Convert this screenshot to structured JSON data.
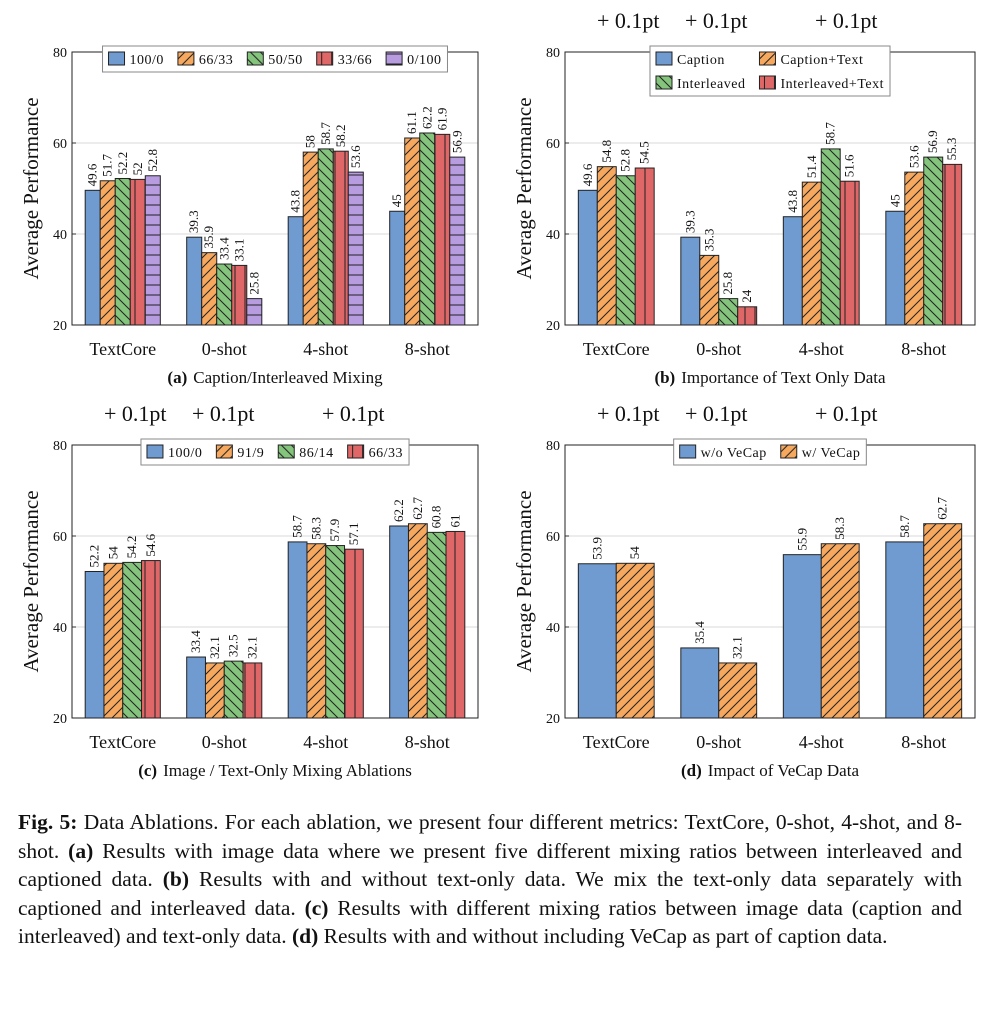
{
  "chart_data": [
    {
      "type": "bar",
      "label": "(a)",
      "title": "Caption/Interleaved Mixing",
      "y_label": "Average Performance",
      "categories": [
        "TextCore",
        "0-shot",
        "4-shot",
        "8-shot"
      ],
      "series": [
        {
          "name": "100/0",
          "color": "#6f9bd1",
          "hatch": "none",
          "values": [
            49.6,
            39.3,
            43.8,
            45
          ]
        },
        {
          "name": "66/33",
          "color": "#f6a85e",
          "hatch": "/",
          "values": [
            51.7,
            35.9,
            58,
            61.1
          ]
        },
        {
          "name": "50/50",
          "color": "#84c47c",
          "hatch": "\\",
          "values": [
            52.2,
            33.4,
            58.7,
            62.2
          ]
        },
        {
          "name": "33/66",
          "color": "#e06767",
          "hatch": "|",
          "values": [
            52,
            33.1,
            58.2,
            61.9
          ]
        },
        {
          "name": "0/100",
          "color": "#b79ce0",
          "hatch": "-",
          "values": [
            52.8,
            25.8,
            53.6,
            56.9
          ]
        }
      ],
      "ylim": [
        20,
        80
      ],
      "yticks": [
        20,
        40,
        60,
        80
      ],
      "grid": true,
      "legend": "upper center",
      "legend_columns": 5
    },
    {
      "type": "bar",
      "label": "(b)",
      "title": "Importance of Text Only Data",
      "y_label": "Average Performance",
      "annotations": [
        "+ 0.1pt",
        "+ 0.1pt",
        "+ 0.1pt"
      ],
      "categories": [
        "TextCore",
        "0-shot",
        "4-shot",
        "8-shot"
      ],
      "series": [
        {
          "name": "Caption",
          "color": "#6f9bd1",
          "hatch": "none",
          "values": [
            49.6,
            39.3,
            43.8,
            45
          ]
        },
        {
          "name": "Caption+Text",
          "color": "#f6a85e",
          "hatch": "/",
          "values": [
            54.8,
            35.3,
            51.4,
            53.6
          ]
        },
        {
          "name": "Interleaved",
          "color": "#84c47c",
          "hatch": "\\",
          "values": [
            52.8,
            25.8,
            58.7,
            56.9
          ]
        },
        {
          "name": "Interleaved+Text",
          "color": "#e06767",
          "hatch": "|",
          "values": [
            54.5,
            24,
            51.6,
            55.3
          ]
        }
      ],
      "ylim": [
        20,
        80
      ],
      "yticks": [
        20,
        40,
        60,
        80
      ],
      "grid": true,
      "legend": "upper center",
      "legend_columns": 2
    },
    {
      "type": "bar",
      "label": "(c)",
      "title": "Image / Text-Only Mixing Ablations",
      "y_label": "Average Performance",
      "annotations": [
        "+ 0.1pt",
        "+ 0.1pt",
        "+ 0.1pt"
      ],
      "categories": [
        "TextCore",
        "0-shot",
        "4-shot",
        "8-shot"
      ],
      "series": [
        {
          "name": "100/0",
          "color": "#6f9bd1",
          "hatch": "none",
          "values": [
            52.2,
            33.4,
            58.7,
            62.2
          ]
        },
        {
          "name": "91/9",
          "color": "#f6a85e",
          "hatch": "/",
          "values": [
            54,
            32.1,
            58.3,
            62.7
          ]
        },
        {
          "name": "86/14",
          "color": "#84c47c",
          "hatch": "\\",
          "values": [
            54.2,
            32.5,
            57.9,
            60.8
          ]
        },
        {
          "name": "66/33",
          "color": "#e06767",
          "hatch": "|",
          "values": [
            54.6,
            32.1,
            57.1,
            61
          ]
        }
      ],
      "ylim": [
        20,
        80
      ],
      "yticks": [
        20,
        40,
        60,
        80
      ],
      "grid": true,
      "legend": "upper center",
      "legend_columns": 4
    },
    {
      "type": "bar",
      "label": "(d)",
      "title": "Impact of VeCap Data",
      "y_label": "Average Performance",
      "annotations": [
        "+ 0.1pt",
        "+ 0.1pt",
        "+ 0.1pt"
      ],
      "categories": [
        "TextCore",
        "0-shot",
        "4-shot",
        "8-shot"
      ],
      "series": [
        {
          "name": "w/o VeCap",
          "color": "#6f9bd1",
          "hatch": "none",
          "values": [
            53.9,
            35.4,
            55.9,
            58.7
          ]
        },
        {
          "name": "w/ VeCap",
          "color": "#f6a85e",
          "hatch": "/",
          "values": [
            54,
            32.1,
            58.3,
            62.7
          ]
        }
      ],
      "ylim": [
        20,
        80
      ],
      "yticks": [
        20,
        40,
        60,
        80
      ],
      "grid": true,
      "legend": "upper center",
      "legend_columns": 2
    }
  ],
  "caption": {
    "parts": [
      "Fig. 5:",
      "Data Ablations. For each ablation, we present four different metrics: TextCore, 0-shot, 4-shot, and 8-shot.",
      "(a)",
      "Results with image data where we present five different mixing ratios between interleaved and captioned data.",
      "(b)",
      "Results with and without text-only data. We mix the text-only data separately with captioned and interleaved data.",
      "(c)",
      "Results with different mixing ratios between image data (caption and interleaved) and text-only data.",
      "(d)",
      "Results with and without including VeCap as part of caption data."
    ]
  }
}
